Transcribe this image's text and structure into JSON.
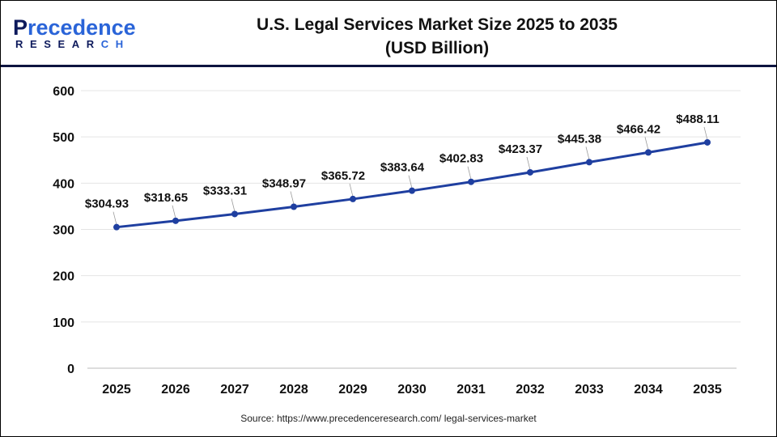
{
  "logo": {
    "line1_accent": "P",
    "line1_rest": "recedence",
    "line2_main": "RESEAR",
    "line2_accent": "CH"
  },
  "header": {
    "title_line1": "U.S. Legal Services Market Size 2025 to 2035",
    "title_line2": "(USD Billion)"
  },
  "chart_data": {
    "type": "line",
    "title": "U.S. Legal Services Market Size 2025 to 2035 (USD Billion)",
    "xlabel": "",
    "ylabel": "",
    "categories": [
      "2025",
      "2026",
      "2027",
      "2028",
      "2029",
      "2030",
      "2031",
      "2032",
      "2033",
      "2034",
      "2035"
    ],
    "values": [
      304.93,
      318.65,
      333.31,
      348.97,
      365.72,
      383.64,
      402.83,
      423.37,
      445.38,
      466.42,
      488.11
    ],
    "data_labels": [
      "$304.93",
      "$318.65",
      "$333.31",
      "$348.97",
      "$365.72",
      "$383.64",
      "$402.83",
      "$423.37",
      "$445.38",
      "$466.42",
      "$488.11"
    ],
    "ylim": [
      0,
      600
    ],
    "yticks": [
      "0",
      "100",
      "200",
      "300",
      "400",
      "500",
      "600"
    ],
    "grid": true,
    "line_color": "#1f3fa0"
  },
  "footer": {
    "source": "Source: https://www.precedenceresearch.com/ legal-services-market"
  }
}
